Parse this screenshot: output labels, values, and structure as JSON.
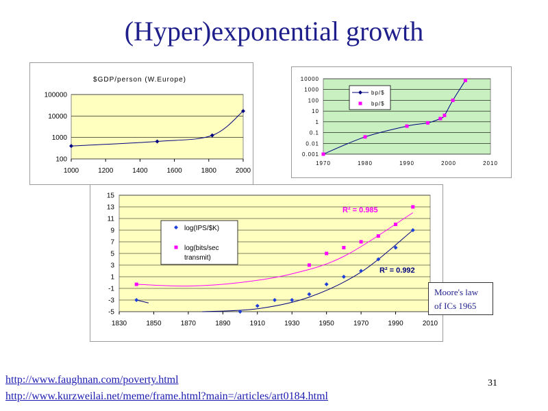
{
  "slide": {
    "title": "(Hyper)exponential growth",
    "links": [
      "http://www.faughnan.com/poverty.html",
      "http://www.kurzweilai.net/meme/frame.html?main=/articles/art0184.html"
    ],
    "page_number": "31",
    "moore_note": [
      "Moore's law",
      "of ICs 1965"
    ]
  },
  "colors": {
    "title": "#1f1f8c",
    "plot_bg": "#ffffc0",
    "plot_bg_green": "#c8f0c0",
    "navy": "#000080",
    "blue": "#1f3fd6",
    "magenta": "#ff00ff"
  },
  "chart_data": [
    {
      "type": "line",
      "title": "$GDP/person (W.Europe)",
      "x_ticks": [
        "1000",
        "1200",
        "1400",
        "1600",
        "1800",
        "2000"
      ],
      "y_ticks": [
        "100",
        "1000",
        "10000",
        "100000"
      ],
      "xlim": [
        1000,
        2000
      ],
      "ylim": [
        100,
        100000
      ],
      "y_scale": "log",
      "grid": true,
      "series": [
        {
          "values": [
            [
              1000,
              400
            ],
            [
              1500,
              650
            ],
            [
              1820,
              1250
            ],
            [
              2000,
              17000
            ]
          ]
        }
      ]
    },
    {
      "type": "scatter",
      "title": "",
      "x_ticks": [
        "1970",
        "1980",
        "1990",
        "2000",
        "2010"
      ],
      "y_ticks": [
        "0.001",
        "0.01",
        "0.1",
        "1",
        "10",
        "100",
        "1000",
        "10000"
      ],
      "xlim": [
        1970,
        2010
      ],
      "ylim": [
        0.001,
        10000
      ],
      "y_scale": "log",
      "grid": true,
      "legend": "top-left",
      "series": [
        {
          "name": "bp/$",
          "style": "line",
          "values": [
            [
              1970,
              0.001
            ],
            [
              1980,
              0.04
            ],
            [
              1990,
              0.4
            ],
            [
              1995,
              0.8
            ],
            [
              1998,
              2
            ],
            [
              1999,
              4
            ],
            [
              2001,
              100
            ],
            [
              2004,
              7000
            ]
          ]
        },
        {
          "name": "bp/$",
          "style": "markers",
          "values": [
            [
              1970,
              0.001
            ],
            [
              1980,
              0.04
            ],
            [
              1990,
              0.4
            ],
            [
              1995,
              0.8
            ],
            [
              1998,
              2
            ],
            [
              1999,
              4
            ],
            [
              2001,
              100
            ],
            [
              2004,
              7000
            ]
          ]
        }
      ]
    },
    {
      "type": "scatter",
      "title": "",
      "x_ticks": [
        "1830",
        "1850",
        "1870",
        "1890",
        "1910",
        "1930",
        "1950",
        "1970",
        "1990",
        "2010"
      ],
      "y_ticks": [
        "-5",
        "-3",
        "-1",
        "1",
        "3",
        "5",
        "7",
        "9",
        "11",
        "13",
        "15"
      ],
      "xlim": [
        1830,
        2010
      ],
      "ylim": [
        -5,
        15
      ],
      "grid": true,
      "legend": "top-left",
      "annotations": [
        {
          "text": "R² = 0.985",
          "color": "#ff00ff"
        },
        {
          "text": "R² = 0.992",
          "color": "#1f3fd6"
        }
      ],
      "series": [
        {
          "name": "log(IPS/$K)",
          "values": [
            [
              1840,
              -3
            ],
            [
              1900,
              -5
            ],
            [
              1910,
              -4
            ],
            [
              1920,
              -3
            ],
            [
              1930,
              -3
            ],
            [
              1940,
              -2
            ],
            [
              1950,
              -0.3
            ],
            [
              1960,
              1
            ],
            [
              1970,
              2
            ],
            [
              1980,
              4
            ],
            [
              1990,
              6
            ],
            [
              2000,
              9
            ]
          ]
        },
        {
          "name": "log(bits/sec transmit)",
          "values": [
            [
              1840,
              -0.3
            ],
            [
              1940,
              3
            ],
            [
              1950,
              5
            ],
            [
              1960,
              6
            ],
            [
              1970,
              7
            ],
            [
              1980,
              8
            ],
            [
              1990,
              10
            ],
            [
              2000,
              13
            ]
          ]
        }
      ]
    }
  ]
}
